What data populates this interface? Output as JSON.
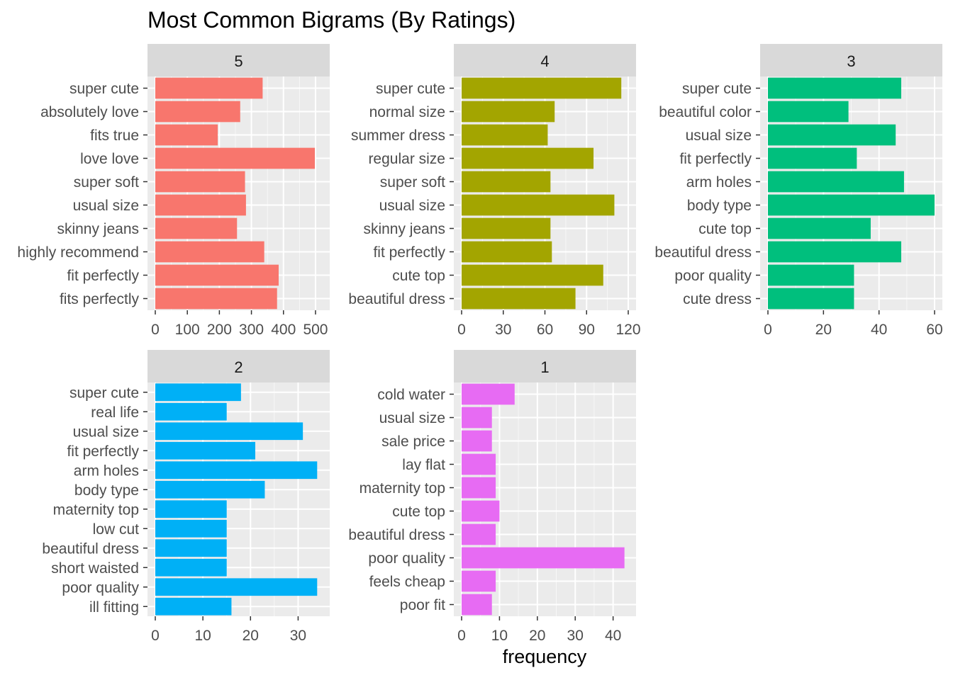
{
  "chart_data": {
    "type": "bar",
    "title": "Most Common Bigrams (By Ratings)",
    "xlabel": "frequency",
    "ylabel": "",
    "grid": true,
    "facets": [
      {
        "label": "5",
        "color": "#F8766D",
        "xlim": [
          0,
          520
        ],
        "xticks": [
          0,
          100,
          200,
          300,
          400,
          500
        ],
        "categories": [
          "super cute",
          "absolutely love",
          "fits true",
          "love love",
          "super soft",
          "usual size",
          "skinny jeans",
          "highly recommend",
          "fit perfectly",
          "fits perfectly"
        ],
        "values": [
          335,
          265,
          195,
          498,
          280,
          283,
          255,
          340,
          385,
          380
        ]
      },
      {
        "label": "4",
        "color": "#A3A500",
        "xlim": [
          0,
          120
        ],
        "xticks": [
          0,
          30,
          60,
          90,
          120
        ],
        "categories": [
          "super cute",
          "normal size",
          "summer dress",
          "regular size",
          "super soft",
          "usual size",
          "skinny jeans",
          "fit perfectly",
          "cute top",
          "beautiful dress"
        ],
        "values": [
          115,
          67,
          62,
          95,
          64,
          110,
          64,
          65,
          102,
          82
        ]
      },
      {
        "label": "3",
        "color": "#00BF7D",
        "xlim": [
          0,
          60
        ],
        "xticks": [
          0,
          20,
          40,
          60
        ],
        "categories": [
          "super cute",
          "beautiful color",
          "usual size",
          "fit perfectly",
          "arm holes",
          "body type",
          "cute top",
          "beautiful dress",
          "poor quality",
          "cute dress"
        ],
        "values": [
          48,
          29,
          46,
          32,
          49,
          60,
          37,
          48,
          31,
          31
        ]
      },
      {
        "label": "2",
        "color": "#00B0F6",
        "xlim": [
          0,
          35
        ],
        "xticks": [
          0,
          10,
          20,
          30
        ],
        "categories": [
          "super cute",
          "real life",
          "usual size",
          "fit perfectly",
          "arm holes",
          "body type",
          "maternity top",
          "low cut",
          "beautiful dress",
          "short waisted",
          "poor quality",
          "ill fitting"
        ],
        "values": [
          18,
          15,
          31,
          21,
          34,
          23,
          15,
          15,
          15,
          15,
          34,
          16
        ]
      },
      {
        "label": "1",
        "color": "#E76BF3",
        "xlim": [
          0,
          44
        ],
        "xticks": [
          0,
          10,
          20,
          30,
          40
        ],
        "categories": [
          "cold water",
          "usual size",
          "sale price",
          "lay flat",
          "maternity top",
          "cute top",
          "beautiful dress",
          "poor quality",
          "feels cheap",
          "poor fit"
        ],
        "values": [
          14,
          8,
          8,
          9,
          9,
          10,
          9,
          43,
          9,
          8
        ]
      }
    ]
  }
}
